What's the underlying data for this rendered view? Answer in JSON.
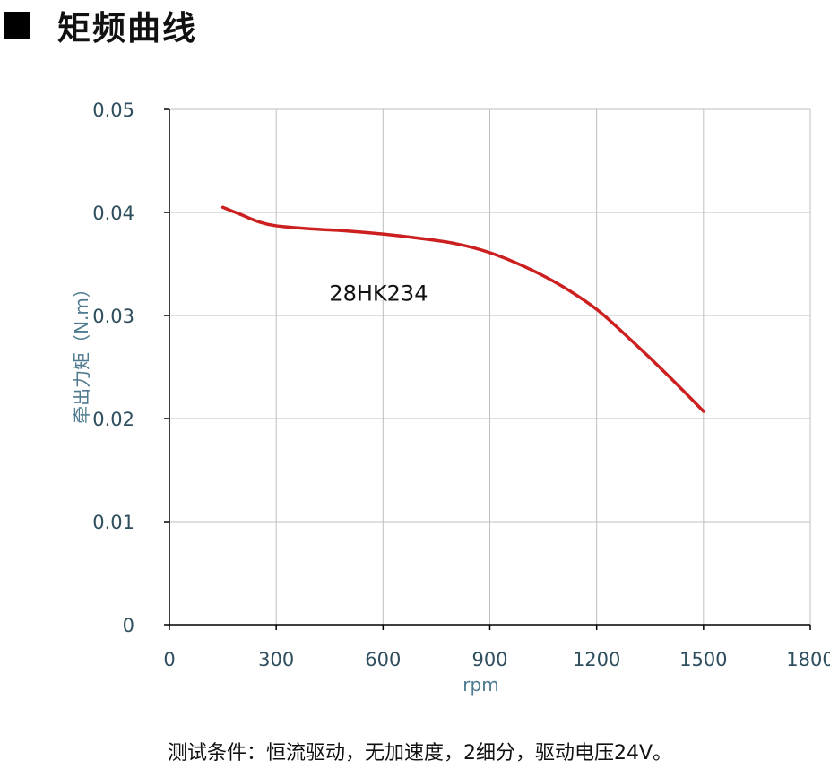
{
  "heading": {
    "title": "矩频曲线",
    "bullet_icon": "black-square-icon"
  },
  "chart_data": {
    "type": "line",
    "title": "",
    "xlabel": "rpm",
    "ylabel": "牵出力矩（N.m）",
    "xlim": [
      0,
      1800
    ],
    "ylim": [
      0,
      0.05
    ],
    "x_ticks": [
      0,
      300,
      600,
      900,
      1200,
      1500,
      1800
    ],
    "x_tick_labels": [
      "0",
      "300",
      "600",
      "900",
      "1200",
      "1500",
      "1800"
    ],
    "y_ticks": [
      0,
      0.01,
      0.02,
      0.03,
      0.04,
      0.05
    ],
    "y_tick_labels": [
      "0",
      "0.01",
      "0.02",
      "0.03",
      "0.04",
      "0.05"
    ],
    "grid": true,
    "legend": "none",
    "series": [
      {
        "name": "28HK234",
        "color": "#cc1f1f",
        "x": [
          150,
          200,
          250,
          300,
          400,
          500,
          600,
          700,
          800,
          900,
          1000,
          1100,
          1200,
          1300,
          1400,
          1500
        ],
        "y": [
          0.0405,
          0.0398,
          0.0391,
          0.0387,
          0.0384,
          0.0382,
          0.0379,
          0.0375,
          0.037,
          0.0361,
          0.0347,
          0.0329,
          0.0306,
          0.0275,
          0.0242,
          0.0207
        ]
      }
    ],
    "annotations": [
      {
        "text": "28HK234",
        "x": 600,
        "y": 0.0322
      }
    ],
    "colors": {
      "axis": "#000000",
      "grid": "#bfbfbf",
      "tick_label": "#2f4f5f",
      "axis_title": "#4f7a8f"
    }
  },
  "footer": {
    "test_conditions": "测试条件：恒流驱动，无加速度，2细分，驱动电压24V。"
  }
}
